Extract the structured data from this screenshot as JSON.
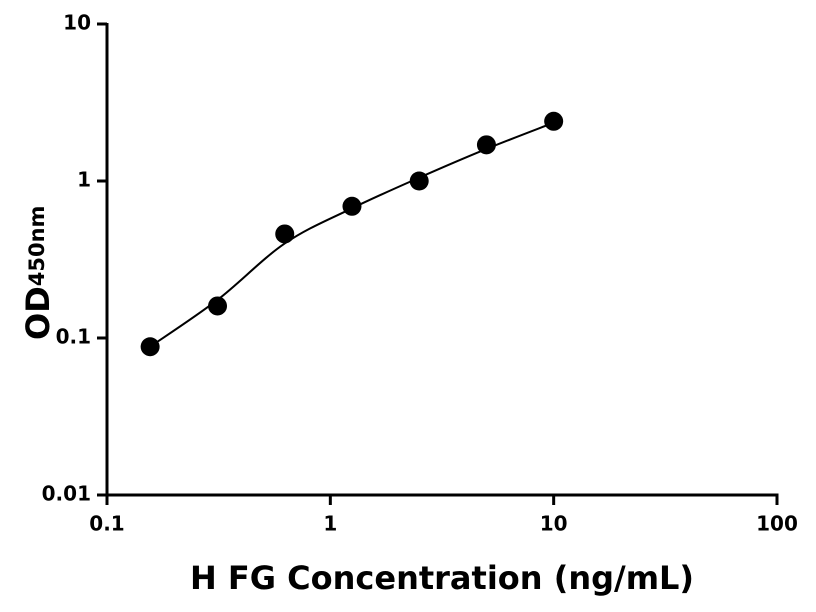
{
  "chart_data": {
    "type": "scatter",
    "xlabel": "H FG Concentration (ng/mL)",
    "ylabel": "OD",
    "ylabel_sub": "450nm",
    "x": [
      0.156,
      0.3125,
      0.625,
      1.25,
      2.5,
      5,
      10
    ],
    "values": [
      0.088,
      0.16,
      0.46,
      0.69,
      1.0,
      1.7,
      2.4
    ],
    "color": "#000000",
    "fit_x": [
      0.156,
      0.3125,
      0.625,
      1.25,
      2.5,
      5,
      10
    ],
    "fit_y": [
      0.088,
      0.175,
      0.4,
      0.67,
      1.05,
      1.6,
      2.35
    ],
    "xlim": [
      0.1,
      100
    ],
    "ylim": [
      0.01,
      10
    ],
    "xticks": [
      0.1,
      1,
      10,
      100
    ],
    "yticks": [
      0.01,
      0.1,
      1,
      10
    ],
    "xscale": "log",
    "yscale": "log",
    "grid": false
  }
}
